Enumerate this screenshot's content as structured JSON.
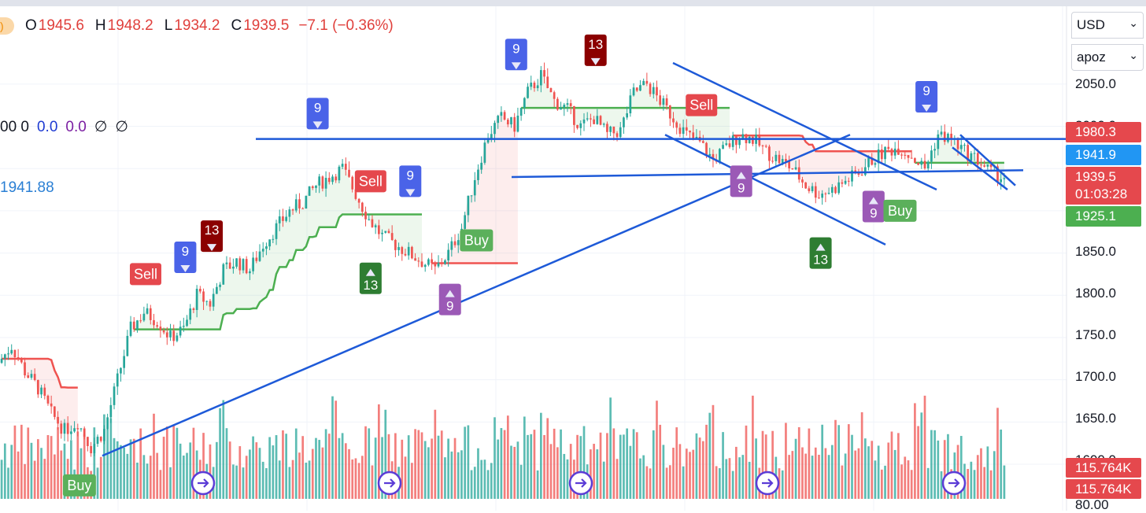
{
  "ohlc": {
    "open_label": "O",
    "open": "1945.6",
    "high_label": "H",
    "high": "1948.2",
    "low_label": "L",
    "low": "1934.2",
    "close_label": "C",
    "close": "1939.5",
    "change": "−7.1 (−0.36%)"
  },
  "indicator_row": {
    "v1": "00 0",
    "v2": "0.0",
    "v3": "0.0",
    "v4": "∅",
    "v5": "∅"
  },
  "vwap_value": "1941.88",
  "selectors": {
    "currency": "USD",
    "source": "apoz"
  },
  "axis_labels": [
    "2050.0",
    "1850.0",
    "1800.0",
    "1750.0",
    "1700.0",
    "1650.0"
  ],
  "axis_partial_top": "2000.0",
  "axis_partial_low": "1600.0",
  "axis_bottom": "80.00",
  "price_tags": {
    "upper_band": "1980.3",
    "blue_line": "1941.9",
    "last_price": "1939.5",
    "countdown": "01:03:28",
    "lower_band": "1925.1",
    "volume1": "115.764K",
    "volume2": "115.764K"
  },
  "colors": {
    "up": "#26a69a",
    "down": "#ef5350",
    "trend": "#1e5ad8",
    "bull_band": "#4caf50",
    "bear_band": "#ef5350",
    "blue9": "#4a63e8",
    "purple9": "#9b59b6",
    "green13": "#2e7d32",
    "red13": "#8b0000",
    "sell": "#e5484d",
    "buy": "#5bb05b"
  },
  "icon_markers": [
    "replay-icon",
    "replay-icon",
    "replay-icon",
    "replay-icon",
    "replay-icon"
  ],
  "chart_data": {
    "type": "candlestick",
    "title": "",
    "ylim": [
      1600,
      2075
    ],
    "ohlc_last": {
      "open": 1945.6,
      "high": 1948.2,
      "low": 1934.2,
      "close": 1939.5
    },
    "price_path": [
      1720,
      1740,
      1710,
      1690,
      1660,
      1640,
      1650,
      1620,
      1640,
      1700,
      1760,
      1780,
      1770,
      1750,
      1760,
      1800,
      1790,
      1830,
      1840,
      1830,
      1860,
      1880,
      1900,
      1910,
      1930,
      1940,
      1950,
      1920,
      1890,
      1870,
      1860,
      1850,
      1840,
      1830,
      1850,
      1880,
      1940,
      1990,
      2010,
      2000,
      2040,
      2060,
      2030,
      2020,
      2000,
      2010,
      1990,
      1995,
      2040,
      2050,
      2030,
      2010,
      1990,
      1980,
      1960,
      1975,
      1990,
      1985,
      1970,
      1960,
      1950,
      1930,
      1920,
      1925,
      1935,
      1945,
      1960,
      1970,
      1975,
      1965,
      1950,
      1990,
      1985,
      1970,
      1960,
      1945,
      1939.5
    ],
    "signals": [
      {
        "label": "Sell",
        "index": 11
      },
      {
        "label": "Buy",
        "index": 6
      },
      {
        "label": "9",
        "index": 14,
        "dir": "down"
      },
      {
        "label": "13",
        "index": 16,
        "dir": "down"
      },
      {
        "label": "9",
        "index": 24,
        "dir": "down"
      },
      {
        "label": "9",
        "index": 31,
        "dir": "down"
      },
      {
        "label": "13",
        "index": 28,
        "dir": "up"
      },
      {
        "label": "Sell",
        "index": 28
      },
      {
        "label": "9",
        "index": 34,
        "dir": "up"
      },
      {
        "label": "Buy",
        "index": 36
      },
      {
        "label": "9",
        "index": 39,
        "dir": "down"
      },
      {
        "label": "13",
        "index": 45,
        "dir": "down"
      },
      {
        "label": "Sell",
        "index": 53
      },
      {
        "label": "9",
        "index": 56,
        "dir": "up"
      },
      {
        "label": "13",
        "index": 62,
        "dir": "up"
      },
      {
        "label": "9",
        "index": 66,
        "dir": "up"
      },
      {
        "label": "Buy",
        "index": 68
      },
      {
        "label": "9",
        "index": 70,
        "dir": "down"
      }
    ]
  }
}
